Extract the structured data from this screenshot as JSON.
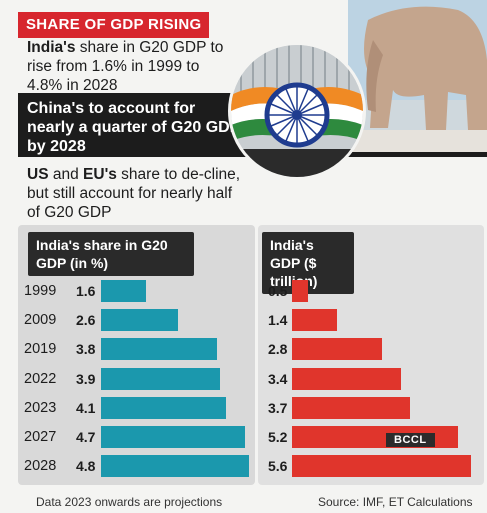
{
  "banner": "SHARE OF GDP RISING",
  "points": {
    "p1_bold": "India's",
    "p1_rest": " share in G20 GDP to rise from 1.6% in 1999 to 4.8% in 2028",
    "p2": "China's to account for nearly a quarter of G20 GDP by 2028",
    "p3_bold1": "US",
    "p3_mid": " and ",
    "p3_bold2": "EU's",
    "p3_rest": " share to de-cline, but still account for nearly half of G20 GDP"
  },
  "colors": {
    "share_bar": "#1b98ad",
    "gdp_bar": "#e0352c",
    "banner": "#d7262e"
  },
  "chart_data": [
    {
      "type": "bar",
      "title": "India's share in G20 GDP (in %)",
      "categories": [
        "1999",
        "2009",
        "2019",
        "2022",
        "2023",
        "2027",
        "2028"
      ],
      "values": [
        1.6,
        2.6,
        3.8,
        3.9,
        4.1,
        4.7,
        4.8
      ],
      "labels": [
        "1.6",
        "2.6",
        "3.8",
        "3.9",
        "4.1",
        "4.7",
        "4.8"
      ],
      "orientation": "horizontal"
    },
    {
      "type": "bar",
      "title": "India's GDP ($ trillion)",
      "categories": [
        "1999",
        "2009",
        "2019",
        "2022",
        "2023",
        "2027",
        "2028"
      ],
      "values": [
        0.5,
        1.4,
        2.8,
        3.4,
        3.7,
        5.2,
        5.6
      ],
      "labels": [
        "0.5",
        "1.4",
        "2.8",
        "3.4",
        "3.7",
        "5.2",
        "5.6"
      ],
      "orientation": "horizontal"
    }
  ],
  "watermark": "BCCL",
  "footer": {
    "note": "Data 2023 onwards are projections",
    "source": "Source: IMF, ET Calculations"
  }
}
